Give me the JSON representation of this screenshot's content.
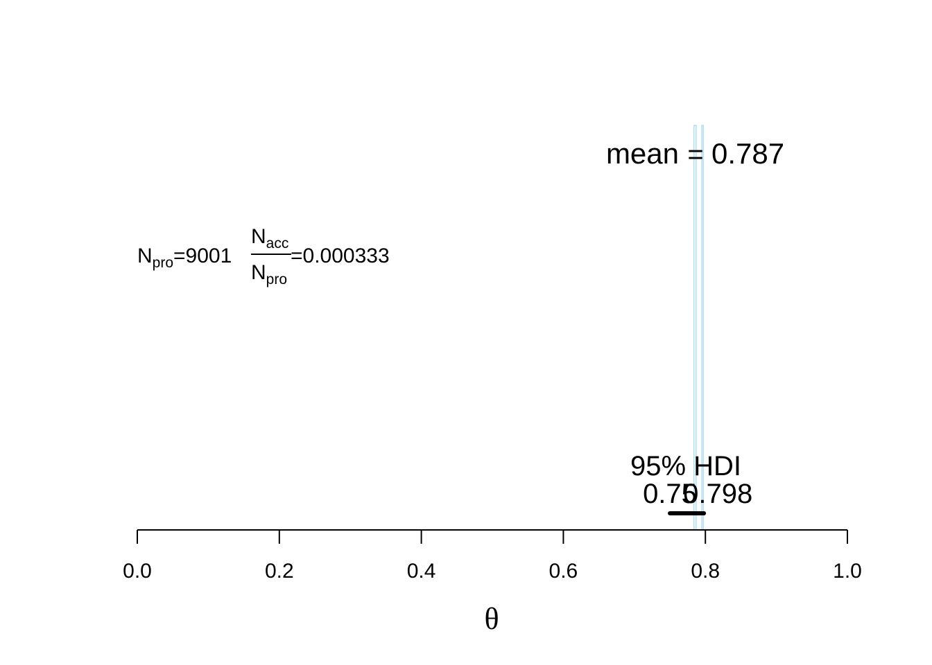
{
  "chart_data": {
    "type": "histogram",
    "xlabel": "θ",
    "xlim": [
      0,
      1
    ],
    "x_ticks": [
      "0.0",
      "0.2",
      "0.4",
      "0.6",
      "0.8",
      "1.0"
    ],
    "x_tick_values": [
      0.0,
      0.2,
      0.4,
      0.6,
      0.8,
      1.0
    ],
    "sample_bars": [
      {
        "x0": 0.784,
        "x1": 0.787
      },
      {
        "x0": 0.795,
        "x1": 0.797
      }
    ],
    "bar_color": "#87ceeb",
    "mean": {
      "label": "mean",
      "equals": "=",
      "value": 0.787,
      "value_text": "0.787"
    },
    "hdi": {
      "label": "95% HDI",
      "low": 0.75,
      "high": 0.798,
      "low_text": "0.75",
      "high_text": "0.798"
    },
    "annotation": {
      "n_pro_label": "N",
      "n_pro_sub": "pro",
      "n_pro_value": "=9001",
      "frac_num": "N",
      "frac_num_sub": "acc",
      "frac_den": "N",
      "frac_den_sub": "pro",
      "ratio_value": "=0.000333"
    }
  }
}
